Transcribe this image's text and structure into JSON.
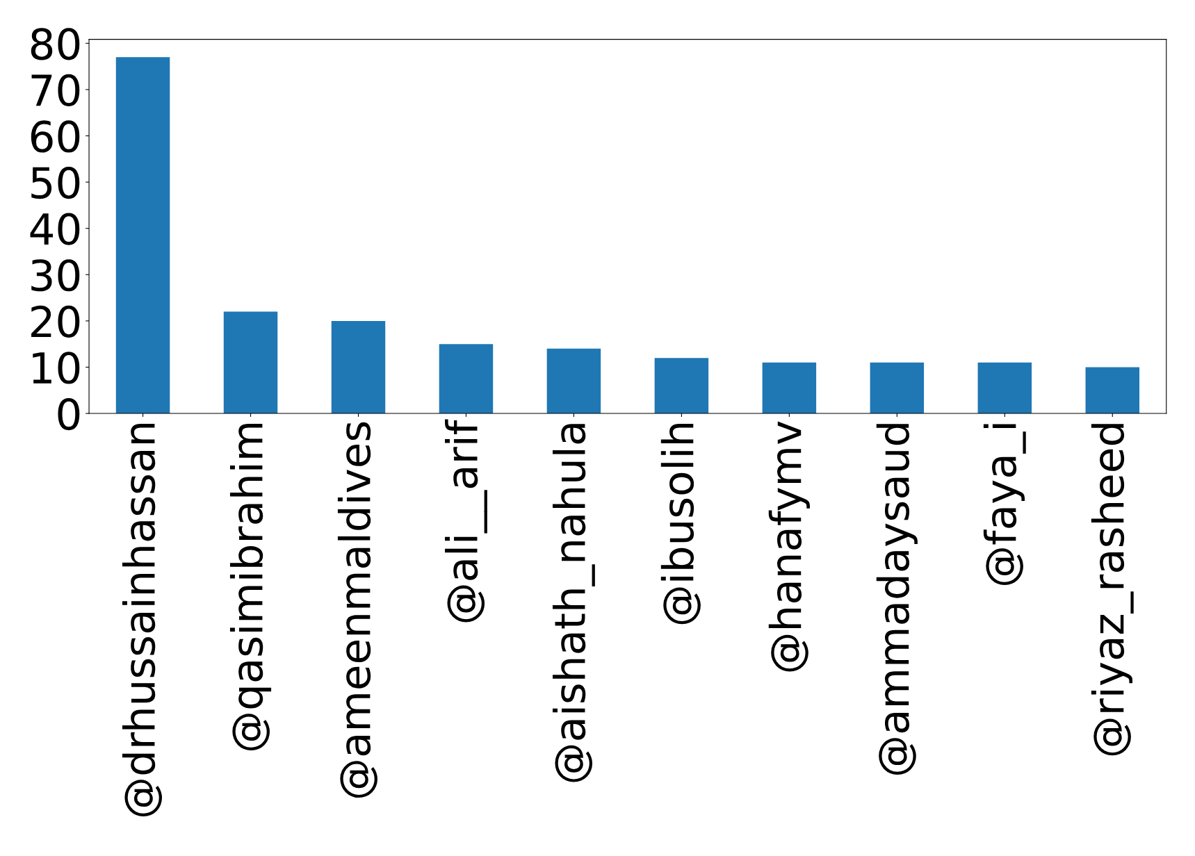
{
  "chart_data": {
    "type": "bar",
    "categories": [
      "@drhussainhassan",
      "@qasimibrahim",
      "@ameenmaldives",
      "@ali__arif",
      "@aishath_nahula",
      "@ibusolih",
      "@hanafymv",
      "@ammadaysaud",
      "@faya_i",
      "@riyaz_rasheed"
    ],
    "values": [
      77,
      22,
      20,
      15,
      14,
      12,
      11,
      11,
      11,
      10
    ],
    "color": "#1f77b4",
    "ylim": [
      0,
      80.85
    ],
    "yticks": [
      0,
      10,
      20,
      30,
      40,
      50,
      60,
      70,
      80
    ],
    "grid": false
  }
}
